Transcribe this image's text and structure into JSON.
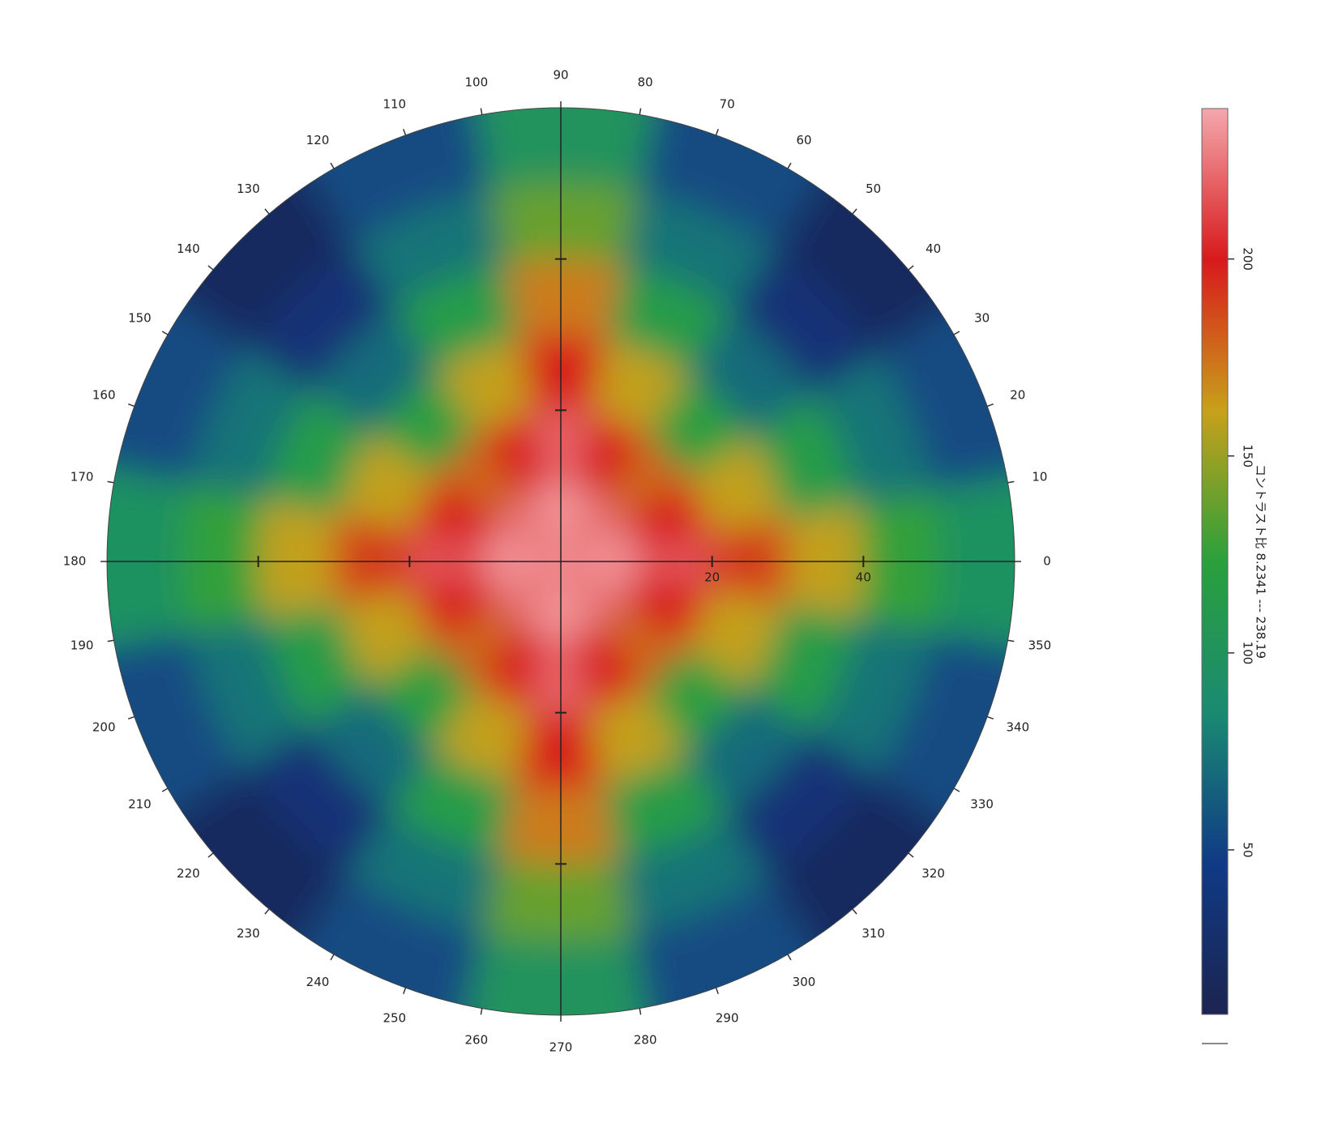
{
  "chart_data": {
    "type": "polar_heatmap",
    "theta": [
      0,
      22.5,
      45,
      67.5,
      90,
      112.5,
      135,
      157.5,
      180,
      202.5,
      225,
      247.5,
      270,
      292.5,
      315,
      337.5
    ],
    "r_edges": [
      0,
      10,
      20,
      30,
      40,
      50,
      60
    ],
    "values": [
      [
        235,
        215,
        190,
        160,
        125,
        98
      ],
      [
        228,
        200,
        160,
        115,
        75,
        55
      ],
      [
        222,
        178,
        120,
        70,
        35,
        18
      ],
      [
        228,
        200,
        160,
        115,
        75,
        55
      ],
      [
        236,
        220,
        200,
        172,
        138,
        100
      ],
      [
        228,
        200,
        160,
        115,
        75,
        55
      ],
      [
        222,
        178,
        120,
        70,
        35,
        18
      ],
      [
        228,
        200,
        160,
        115,
        75,
        55
      ],
      [
        235,
        215,
        190,
        160,
        125,
        98
      ],
      [
        228,
        200,
        160,
        115,
        75,
        55
      ],
      [
        222,
        178,
        120,
        70,
        35,
        18
      ],
      [
        228,
        200,
        160,
        115,
        75,
        55
      ],
      [
        236,
        220,
        200,
        172,
        138,
        100
      ],
      [
        228,
        200,
        160,
        115,
        75,
        55
      ],
      [
        222,
        178,
        120,
        70,
        35,
        18
      ],
      [
        228,
        200,
        160,
        115,
        75,
        55
      ]
    ],
    "rlim": [
      0,
      60
    ],
    "rticks": [
      20,
      40
    ],
    "thetaticks": [
      0,
      10,
      20,
      30,
      40,
      50,
      60,
      70,
      80,
      90,
      100,
      110,
      120,
      130,
      140,
      150,
      160,
      170,
      180,
      190,
      200,
      210,
      220,
      230,
      240,
      250,
      260,
      270,
      280,
      290,
      300,
      310,
      320,
      330,
      340,
      350
    ],
    "colorbar_label": "コントラスト比 8.2341 --- 238.19",
    "clim": [
      8.2341,
      238.19
    ],
    "cticks": [
      50,
      100,
      150,
      200
    ],
    "colormap": [
      "#1c2450",
      "#103a86",
      "#1a8a72",
      "#2aa03c",
      "#c8a01a",
      "#d8191c",
      "#f4a8ac"
    ]
  }
}
